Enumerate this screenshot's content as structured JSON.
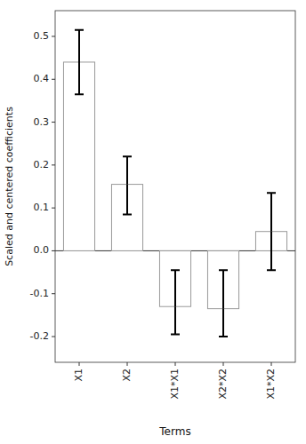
{
  "chart_data": {
    "type": "bar",
    "categories": [
      "X1",
      "X2",
      "X1*X1",
      "X2*X2",
      "X1*X2"
    ],
    "values": [
      0.44,
      0.155,
      -0.13,
      -0.135,
      0.045
    ],
    "err_lower": [
      0.075,
      0.07,
      0.065,
      0.065,
      0.09
    ],
    "err_upper": [
      0.075,
      0.065,
      0.085,
      0.09,
      0.09
    ],
    "color": "#ffffff",
    "xlabel": "Terms",
    "ylabel": "Scaled and centered coefficients",
    "ylim": [
      -0.26,
      0.56
    ],
    "yticks": [
      -0.2,
      -0.1,
      {
        "value": 0,
        "label": "0.0"
      },
      0.1,
      0.2,
      0.3,
      0.4,
      0.5
    ],
    "grid": false
  }
}
